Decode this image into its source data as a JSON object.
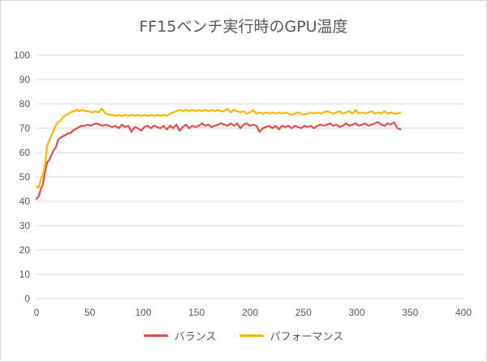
{
  "chart_data": {
    "type": "line",
    "title": "FF15ベンチ実行時のGPU温度",
    "xlabel": "",
    "ylabel": "",
    "xlim": [
      0,
      400
    ],
    "ylim": [
      0,
      100
    ],
    "x_ticks": [
      0,
      50,
      100,
      150,
      200,
      250,
      300,
      350,
      400
    ],
    "y_ticks": [
      0,
      10,
      20,
      30,
      40,
      50,
      60,
      70,
      80,
      90,
      100
    ],
    "grid": "horizontal",
    "legend_position": "bottom",
    "series": [
      {
        "name": "バランス",
        "color": "#e84b4b",
        "points": [
          [
            0,
            41
          ],
          [
            2,
            42
          ],
          [
            4,
            45
          ],
          [
            6,
            47
          ],
          [
            8,
            52
          ],
          [
            10,
            56
          ],
          [
            12,
            57
          ],
          [
            14,
            59
          ],
          [
            16,
            61
          ],
          [
            18,
            62
          ],
          [
            20,
            65
          ],
          [
            22,
            66
          ],
          [
            24,
            66.5
          ],
          [
            26,
            67
          ],
          [
            28,
            67.5
          ],
          [
            30,
            68
          ],
          [
            32,
            68
          ],
          [
            34,
            69
          ],
          [
            36,
            69.5
          ],
          [
            38,
            70
          ],
          [
            40,
            70.5
          ],
          [
            42,
            71
          ],
          [
            45,
            71
          ],
          [
            48,
            71.5
          ],
          [
            50,
            71
          ],
          [
            53,
            71.5
          ],
          [
            56,
            72
          ],
          [
            59,
            71.5
          ],
          [
            62,
            71
          ],
          [
            65,
            71.5
          ],
          [
            68,
            71
          ],
          [
            71,
            70.5
          ],
          [
            74,
            71
          ],
          [
            77,
            70
          ],
          [
            80,
            71.5
          ],
          [
            83,
            70.5
          ],
          [
            86,
            71
          ],
          [
            89,
            68.5
          ],
          [
            92,
            70.5
          ],
          [
            95,
            70
          ],
          [
            98,
            69
          ],
          [
            101,
            70.5
          ],
          [
            104,
            71
          ],
          [
            107,
            70
          ],
          [
            110,
            71
          ],
          [
            113,
            70.5
          ],
          [
            116,
            70
          ],
          [
            119,
            71
          ],
          [
            122,
            69.5
          ],
          [
            125,
            71
          ],
          [
            128,
            70
          ],
          [
            131,
            71.5
          ],
          [
            134,
            69
          ],
          [
            137,
            70.5
          ],
          [
            140,
            71.5
          ],
          [
            143,
            70
          ],
          [
            146,
            71
          ],
          [
            149,
            70.5
          ],
          [
            152,
            71
          ],
          [
            155,
            72
          ],
          [
            158,
            71
          ],
          [
            161,
            71.5
          ],
          [
            164,
            70.5
          ],
          [
            167,
            71
          ],
          [
            170,
            71.5
          ],
          [
            173,
            72
          ],
          [
            176,
            71.5
          ],
          [
            179,
            71
          ],
          [
            182,
            72
          ],
          [
            185,
            71
          ],
          [
            188,
            72
          ],
          [
            191,
            70
          ],
          [
            194,
            71.5
          ],
          [
            197,
            72
          ],
          [
            200,
            71
          ],
          [
            203,
            71.5
          ],
          [
            206,
            71
          ],
          [
            209,
            68.5
          ],
          [
            212,
            70
          ],
          [
            215,
            70.5
          ],
          [
            218,
            71
          ],
          [
            221,
            70
          ],
          [
            224,
            71
          ],
          [
            227,
            69.5
          ],
          [
            230,
            71
          ],
          [
            233,
            70.5
          ],
          [
            236,
            71
          ],
          [
            239,
            70
          ],
          [
            242,
            71
          ],
          [
            245,
            70.5
          ],
          [
            248,
            70
          ],
          [
            251,
            71
          ],
          [
            254,
            70.5
          ],
          [
            257,
            71
          ],
          [
            260,
            70
          ],
          [
            263,
            71
          ],
          [
            266,
            71.5
          ],
          [
            269,
            71
          ],
          [
            272,
            71.5
          ],
          [
            275,
            72
          ],
          [
            278,
            71
          ],
          [
            281,
            71.5
          ],
          [
            284,
            70.5
          ],
          [
            287,
            71
          ],
          [
            290,
            72
          ],
          [
            293,
            71
          ],
          [
            296,
            71.5
          ],
          [
            299,
            72
          ],
          [
            302,
            71
          ],
          [
            305,
            71.5
          ],
          [
            308,
            72
          ],
          [
            311,
            71
          ],
          [
            314,
            71.5
          ],
          [
            317,
            72
          ],
          [
            320,
            72.5
          ],
          [
            323,
            71.5
          ],
          [
            326,
            71
          ],
          [
            329,
            72
          ],
          [
            332,
            71.5
          ],
          [
            335,
            72.5
          ],
          [
            338,
            70
          ],
          [
            341,
            69.5
          ]
        ]
      },
      {
        "name": "パフォーマンス",
        "color": "#f5b800",
        "points": [
          [
            0,
            46
          ],
          [
            2,
            45.5
          ],
          [
            4,
            49
          ],
          [
            6,
            51
          ],
          [
            8,
            55
          ],
          [
            10,
            63
          ],
          [
            12,
            65
          ],
          [
            14,
            67
          ],
          [
            16,
            69
          ],
          [
            18,
            71
          ],
          [
            20,
            72.5
          ],
          [
            22,
            73
          ],
          [
            24,
            74
          ],
          [
            26,
            75
          ],
          [
            28,
            75.5
          ],
          [
            30,
            76
          ],
          [
            32,
            76.5
          ],
          [
            34,
            77
          ],
          [
            36,
            77
          ],
          [
            38,
            77.5
          ],
          [
            40,
            77
          ],
          [
            43,
            77.5
          ],
          [
            46,
            77
          ],
          [
            49,
            77
          ],
          [
            52,
            76.5
          ],
          [
            55,
            77
          ],
          [
            58,
            76.5
          ],
          [
            61,
            78
          ],
          [
            63,
            77
          ],
          [
            65,
            76
          ],
          [
            68,
            75.5
          ],
          [
            71,
            75.5
          ],
          [
            74,
            75
          ],
          [
            77,
            75.5
          ],
          [
            80,
            75
          ],
          [
            83,
            75.5
          ],
          [
            86,
            75
          ],
          [
            89,
            75.5
          ],
          [
            92,
            75
          ],
          [
            95,
            75.5
          ],
          [
            98,
            75
          ],
          [
            101,
            75.5
          ],
          [
            104,
            75
          ],
          [
            107,
            75.5
          ],
          [
            110,
            75
          ],
          [
            113,
            75.5
          ],
          [
            116,
            75
          ],
          [
            119,
            75.5
          ],
          [
            122,
            75
          ],
          [
            125,
            76
          ],
          [
            128,
            76.5
          ],
          [
            131,
            77
          ],
          [
            134,
            77.5
          ],
          [
            137,
            77
          ],
          [
            140,
            77.5
          ],
          [
            143,
            77
          ],
          [
            146,
            77.5
          ],
          [
            149,
            77
          ],
          [
            152,
            77.5
          ],
          [
            155,
            77
          ],
          [
            158,
            77.5
          ],
          [
            161,
            77
          ],
          [
            164,
            77.5
          ],
          [
            167,
            77
          ],
          [
            170,
            77.5
          ],
          [
            173,
            77
          ],
          [
            176,
            77
          ],
          [
            179,
            78
          ],
          [
            182,
            76.5
          ],
          [
            185,
            77.5
          ],
          [
            188,
            77
          ],
          [
            191,
            76.5
          ],
          [
            194,
            77
          ],
          [
            197,
            76
          ],
          [
            200,
            76.5
          ],
          [
            203,
            77.5
          ],
          [
            206,
            76
          ],
          [
            209,
            76.5
          ],
          [
            212,
            76
          ],
          [
            215,
            76.5
          ],
          [
            218,
            76
          ],
          [
            221,
            76.5
          ],
          [
            224,
            76
          ],
          [
            227,
            76.5
          ],
          [
            230,
            76
          ],
          [
            233,
            76.5
          ],
          [
            236,
            76
          ],
          [
            239,
            75.5
          ],
          [
            242,
            76
          ],
          [
            245,
            76.5
          ],
          [
            248,
            76
          ],
          [
            251,
            75.5
          ],
          [
            254,
            76
          ],
          [
            257,
            76.5
          ],
          [
            260,
            76
          ],
          [
            263,
            76.5
          ],
          [
            266,
            76
          ],
          [
            269,
            76.5
          ],
          [
            272,
            77
          ],
          [
            275,
            76.5
          ],
          [
            278,
            76
          ],
          [
            281,
            76.5
          ],
          [
            284,
            77
          ],
          [
            287,
            76
          ],
          [
            290,
            76.5
          ],
          [
            293,
            77
          ],
          [
            296,
            76
          ],
          [
            299,
            77.5
          ],
          [
            302,
            76
          ],
          [
            305,
            76.5
          ],
          [
            308,
            76
          ],
          [
            311,
            76.5
          ],
          [
            314,
            77
          ],
          [
            317,
            76
          ],
          [
            320,
            76.5
          ],
          [
            323,
            76
          ],
          [
            326,
            77
          ],
          [
            329,
            76
          ],
          [
            332,
            76.5
          ],
          [
            335,
            76
          ],
          [
            338,
            76
          ],
          [
            341,
            76.5
          ]
        ]
      }
    ]
  }
}
